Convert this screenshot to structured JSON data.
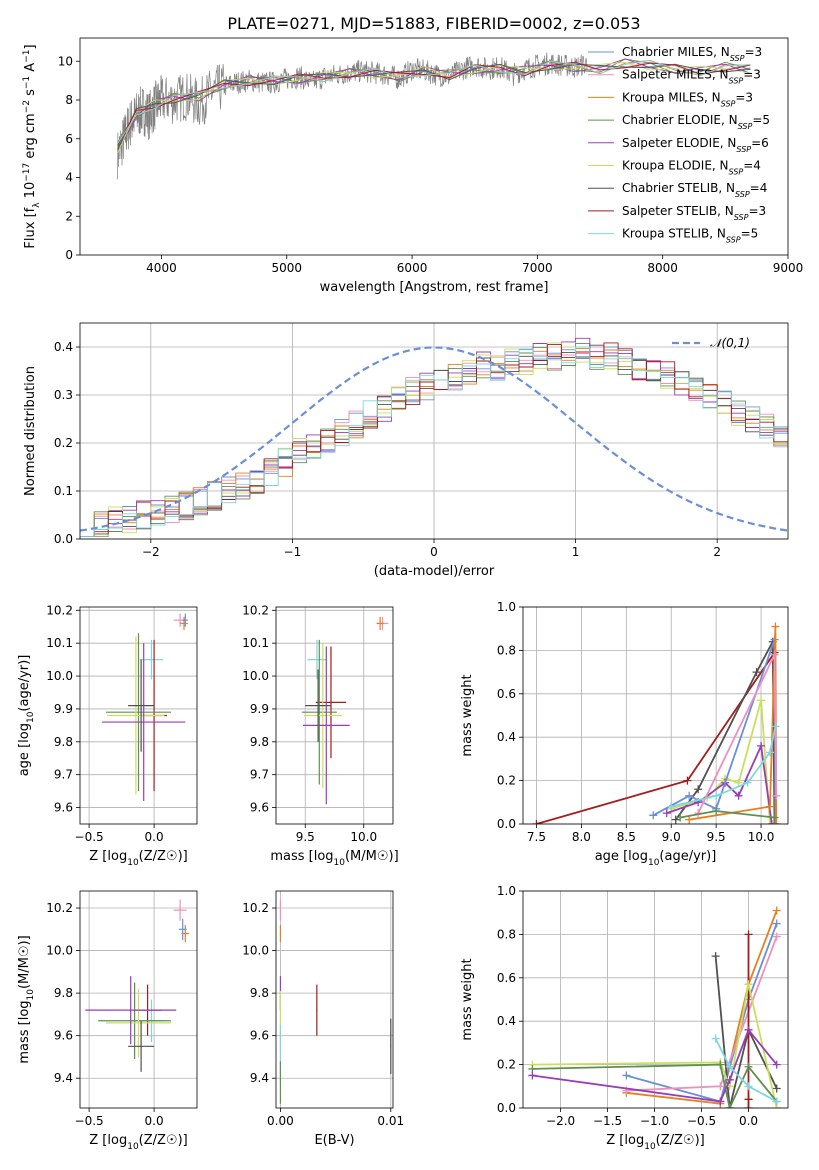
{
  "figure": {
    "title": "PLATE=0271, MJD=51883, FIBERID=0002, z=0.053"
  },
  "chart_data": [
    {
      "id": "spectrum",
      "type": "line",
      "xlabel": "wavelength [Angstrom, rest frame]",
      "ylabel": "Flux [f_λ 10^-17 erg cm^-2 s^-1 A^-1]",
      "xlim": [
        3350,
        9000
      ],
      "ylim": [
        0,
        11.2
      ],
      "xticks": [
        4000,
        5000,
        6000,
        7000,
        8000,
        9000
      ],
      "yticks": [
        0,
        2,
        4,
        6,
        8,
        10
      ],
      "grid": false,
      "legend_position": "right",
      "data_x": [
        3650,
        3700,
        3750,
        3800,
        3850,
        3900,
        3950,
        4000,
        4100,
        4200,
        4300,
        4400,
        4500,
        4600,
        4700,
        4800,
        4900,
        5000,
        5100,
        5200,
        5300,
        5400,
        5500,
        5600,
        5700,
        5800,
        5900,
        6000,
        6100,
        6200,
        6300,
        6400,
        6500,
        6600,
        6700,
        6800,
        6900,
        7000,
        7100,
        7200,
        7300,
        7400
      ],
      "data_y": [
        5.2,
        6.0,
        6.8,
        7.2,
        7.5,
        7.2,
        7.7,
        8.0,
        8.0,
        8.2,
        7.8,
        8.4,
        8.7,
        8.9,
        9.0,
        8.9,
        8.9,
        9.1,
        9.2,
        8.9,
        9.2,
        9.3,
        9.4,
        9.5,
        9.4,
        9.3,
        9.1,
        9.6,
        9.5,
        9.3,
        9.2,
        9.6,
        9.8,
        9.6,
        9.7,
        9.3,
        9.6,
        9.8,
        9.9,
        9.8,
        9.7,
        9.9
      ],
      "model_x": [
        3650,
        3800,
        3950,
        4100,
        4300,
        4500,
        4700,
        4900,
        5100,
        5300,
        5500,
        5700,
        5900,
        6100,
        6300,
        6500,
        6700,
        6900,
        7100,
        7300,
        7500,
        7700,
        7900,
        8100,
        8300,
        8500,
        8700
      ],
      "model_y": [
        5.5,
        7.3,
        7.8,
        8.1,
        8.2,
        8.8,
        9.0,
        9.0,
        9.1,
        9.2,
        9.4,
        9.4,
        9.2,
        9.5,
        9.3,
        9.6,
        9.6,
        9.5,
        9.8,
        9.7,
        9.6,
        9.9,
        9.8,
        9.6,
        9.5,
        9.7,
        9.6
      ],
      "series": [
        {
          "name": "Chabrier MILES, N",
          "sub": "SSP",
          "tail": "=3",
          "color": "#6a8fd8"
        },
        {
          "name": "Salpeter MILES, N",
          "sub": "SSP",
          "tail": "=3",
          "color": "#ee8fbf"
        },
        {
          "name": "Kroupa MILES, N",
          "sub": "SSP",
          "tail": "=3",
          "color": "#e87f1e"
        },
        {
          "name": "Chabrier ELODIE, N",
          "sub": "SSP",
          "tail": "=5",
          "color": "#5f8f52"
        },
        {
          "name": "Salpeter ELODIE, N",
          "sub": "SSP",
          "tail": "=6",
          "color": "#9a3cb8"
        },
        {
          "name": "Kroupa ELODIE, N",
          "sub": "SSP",
          "tail": "=4",
          "color": "#c8e05a"
        },
        {
          "name": "Chabrier STELIB, N",
          "sub": "SSP",
          "tail": "=4",
          "color": "#505050"
        },
        {
          "name": "Salpeter STELIB, N",
          "sub": "SSP",
          "tail": "=3",
          "color": "#a51c1c"
        },
        {
          "name": "Kroupa STELIB, N",
          "sub": "SSP",
          "tail": "=5",
          "color": "#7fd6df"
        }
      ]
    },
    {
      "id": "residuals",
      "type": "bar",
      "xlabel": "(data-model)/error",
      "ylabel": "Normed distribution",
      "xlim": [
        -2.5,
        2.5
      ],
      "ylim": [
        0,
        0.45
      ],
      "xticks": [
        -2,
        -1,
        0,
        1,
        2
      ],
      "yticks": [
        0.0,
        0.1,
        0.2,
        0.3,
        0.4
      ],
      "grid": true,
      "legend": "𝒩(0,1)",
      "legend_position": "top-right",
      "bin_width": 0.1,
      "bin_start": -2.5,
      "hist": [
        0.03,
        0.03,
        0.04,
        0.04,
        0.05,
        0.05,
        0.06,
        0.07,
        0.08,
        0.09,
        0.1,
        0.11,
        0.12,
        0.14,
        0.16,
        0.18,
        0.19,
        0.21,
        0.22,
        0.24,
        0.26,
        0.27,
        0.29,
        0.31,
        0.32,
        0.33,
        0.34,
        0.35,
        0.36,
        0.36,
        0.37,
        0.37,
        0.38,
        0.38,
        0.39,
        0.39,
        0.38,
        0.38,
        0.37,
        0.36,
        0.35,
        0.34,
        0.33,
        0.31,
        0.3,
        0.28,
        0.26,
        0.25,
        0.23,
        0.21
      ]
    },
    {
      "id": "age-vs-Z",
      "type": "scatter",
      "xlabel": "Z [log10(Z/Z☉)]",
      "ylabel": "age [log10(age/yr)]",
      "xlim": [
        -0.57,
        0.33
      ],
      "ylim": [
        9.55,
        10.21
      ],
      "xticks": [
        -0.5,
        0.0
      ],
      "xticklabels": [
        "−0.5",
        "0.0"
      ],
      "yticks": [
        9.6,
        9.7,
        9.8,
        9.9,
        10.0,
        10.1,
        10.2
      ],
      "yticklabels": [
        "9.6",
        "9.7",
        "9.8",
        "9.9",
        "10.0",
        "10.1",
        "10.2"
      ],
      "grid": true,
      "points": [
        {
          "x": 0.2,
          "y": 10.17,
          "xerr": 0.05,
          "yerr": 0.02,
          "c": 1
        },
        {
          "x": 0.23,
          "y": 10.16,
          "xerr": 0.03,
          "yerr": 0.02,
          "c": 2
        },
        {
          "x": 0.24,
          "y": 10.17,
          "xerr": 0.02,
          "yerr": 0.02,
          "c": 0
        },
        {
          "x": -0.02,
          "y": 10.05,
          "xerr": 0.09,
          "yerr": 0.06,
          "c": 8
        },
        {
          "x": 0.0,
          "y": 9.88,
          "xerr": 0.1,
          "yerr": 0.23,
          "c": 7
        },
        {
          "x": -0.12,
          "y": 9.89,
          "xerr": 0.25,
          "yerr": 0.24,
          "c": 3
        },
        {
          "x": -0.14,
          "y": 9.88,
          "xerr": 0.22,
          "yerr": 0.24,
          "c": 5
        },
        {
          "x": -0.08,
          "y": 9.86,
          "xerr": 0.32,
          "yerr": 0.24,
          "c": 4
        },
        {
          "x": -0.1,
          "y": 9.91,
          "xerr": 0.1,
          "yerr": 0.14,
          "c": 6
        }
      ]
    },
    {
      "id": "age-vs-mass",
      "type": "scatter",
      "xlabel": "mass [log10(M/M☉)]",
      "ylabel": "",
      "xlim": [
        9.25,
        10.25
      ],
      "ylim": [
        9.55,
        10.21
      ],
      "xticks": [
        9.5,
        10.0
      ],
      "xticklabels": [
        "9.5",
        "10.0"
      ],
      "yticks": [
        9.6,
        9.7,
        9.8,
        9.9,
        10.0,
        10.1,
        10.2
      ],
      "yticklabels": [
        "9.6",
        "9.7",
        "9.8",
        "9.9",
        "10.0",
        "10.1",
        "10.2"
      ],
      "grid": true,
      "points": [
        {
          "x": 10.16,
          "y": 10.16,
          "xerr": 0.05,
          "yerr": 0.02,
          "c": 1
        },
        {
          "x": 10.14,
          "y": 10.16,
          "xerr": 0.03,
          "yerr": 0.02,
          "c": 2
        },
        {
          "x": 9.6,
          "y": 10.05,
          "xerr": 0.08,
          "yerr": 0.06,
          "c": 8
        },
        {
          "x": 9.72,
          "y": 9.92,
          "xerr": 0.13,
          "yerr": 0.17,
          "c": 7
        },
        {
          "x": 9.62,
          "y": 9.89,
          "xerr": 0.15,
          "yerr": 0.22,
          "c": 3
        },
        {
          "x": 9.65,
          "y": 9.88,
          "xerr": 0.16,
          "yerr": 0.22,
          "c": 5
        },
        {
          "x": 9.68,
          "y": 9.85,
          "xerr": 0.2,
          "yerr": 0.24,
          "c": 4
        },
        {
          "x": 9.61,
          "y": 9.91,
          "xerr": 0.11,
          "yerr": 0.11,
          "c": 6
        }
      ]
    },
    {
      "id": "weight-vs-age",
      "type": "line",
      "xlabel": "age [log10(age/yr)]",
      "ylabel": "mass weight",
      "xlim": [
        7.35,
        10.3
      ],
      "ylim": [
        0,
        1.0
      ],
      "xticks": [
        7.5,
        8.0,
        8.5,
        9.0,
        9.5,
        10.0
      ],
      "xticklabels": [
        "7.5",
        "8.0",
        "8.5",
        "9.0",
        "9.5",
        "10.0"
      ],
      "yticks": [
        0.0,
        0.2,
        0.4,
        0.6,
        0.8,
        1.0
      ],
      "yticklabels": [
        "0.0",
        "0.2",
        "0.4",
        "0.6",
        "0.8",
        "1.0"
      ],
      "grid": true,
      "series": [
        {
          "c": 7,
          "x": [
            7.5,
            9.18,
            10.15,
            10.15
          ],
          "y": [
            0.0,
            0.2,
            0.79,
            0.0
          ]
        },
        {
          "c": 6,
          "x": [
            9.05,
            9.3,
            9.95,
            10.13,
            10.15
          ],
          "y": [
            0.02,
            0.16,
            0.7,
            0.84,
            0.0
          ]
        },
        {
          "c": 5,
          "x": [
            9.0,
            9.4,
            9.6,
            9.75,
            10.0,
            10.1
          ],
          "y": [
            0.07,
            0.12,
            0.21,
            0.19,
            0.57,
            0.0
          ]
        },
        {
          "c": 4,
          "x": [
            8.95,
            9.3,
            9.6,
            9.75,
            10.0,
            10.12
          ],
          "y": [
            0.05,
            0.1,
            0.19,
            0.13,
            0.36,
            0.0
          ]
        },
        {
          "c": 0,
          "x": [
            8.8,
            9.2,
            9.5,
            10.15,
            10.16
          ],
          "y": [
            0.04,
            0.13,
            0.07,
            0.85,
            0.0
          ]
        },
        {
          "c": 2,
          "x": [
            9.2,
            10.1,
            10.16,
            10.17
          ],
          "y": [
            0.02,
            0.08,
            0.91,
            0.0
          ]
        },
        {
          "c": 1,
          "x": [
            9.3,
            10.15,
            10.17
          ],
          "y": [
            0.05,
            0.78,
            0.13
          ]
        },
        {
          "c": 8,
          "x": [
            9.0,
            9.5,
            9.85,
            10.1,
            10.16
          ],
          "y": [
            0.08,
            0.13,
            0.19,
            0.33,
            0.45
          ]
        },
        {
          "c": 3,
          "x": [
            9.1,
            9.5,
            10.15
          ],
          "y": [
            0.03,
            0.06,
            0.03
          ]
        }
      ]
    },
    {
      "id": "mass-vs-Z",
      "type": "scatter",
      "xlabel": "Z [log10(Z/Z☉)]",
      "ylabel": "mass [log10(M/M☉)]",
      "xlim": [
        -0.57,
        0.33
      ],
      "ylim": [
        9.26,
        10.28
      ],
      "xticks": [
        -0.5,
        0.0
      ],
      "xticklabels": [
        "−0.5",
        "0.0"
      ],
      "yticks": [
        9.4,
        9.6,
        9.8,
        10.0,
        10.2
      ],
      "yticklabels": [
        "9.4",
        "9.6",
        "9.8",
        "10.0",
        "10.2"
      ],
      "grid": true,
      "points": [
        {
          "x": 0.2,
          "y": 10.19,
          "xerr": 0.05,
          "yerr": 0.05,
          "c": 1
        },
        {
          "x": 0.24,
          "y": 10.08,
          "xerr": 0.03,
          "yerr": 0.04,
          "c": 2
        },
        {
          "x": 0.22,
          "y": 10.1,
          "xerr": 0.03,
          "yerr": 0.05,
          "c": 0
        },
        {
          "x": -0.02,
          "y": 9.67,
          "xerr": 0.1,
          "yerr": 0.1,
          "c": 8
        },
        {
          "x": -0.05,
          "y": 9.72,
          "xerr": 0.11,
          "yerr": 0.12,
          "c": 7
        },
        {
          "x": -0.15,
          "y": 9.67,
          "xerr": 0.28,
          "yerr": 0.18,
          "c": 3
        },
        {
          "x": -0.12,
          "y": 9.66,
          "xerr": 0.25,
          "yerr": 0.16,
          "c": 5
        },
        {
          "x": -0.18,
          "y": 9.72,
          "xerr": 0.35,
          "yerr": 0.16,
          "c": 4
        },
        {
          "x": -0.1,
          "y": 9.55,
          "xerr": 0.1,
          "yerr": 0.12,
          "c": 6
        }
      ]
    },
    {
      "id": "mass-vs-ebv",
      "type": "scatter",
      "xlabel": "E(B-V)",
      "ylabel": "",
      "xlim": [
        -0.0004,
        0.0102
      ],
      "ylim": [
        9.26,
        10.28
      ],
      "xticks": [
        0.0,
        0.01
      ],
      "xticklabels": [
        "0.00",
        "0.01"
      ],
      "yticks": [
        9.4,
        9.6,
        9.8,
        10.0,
        10.2
      ],
      "yticklabels": [
        "9.4",
        "9.6",
        "9.8",
        "10.0",
        "10.2"
      ],
      "grid": true,
      "points": [
        {
          "x": 0.0,
          "y": 10.19,
          "xerr": 5e-05,
          "yerr": 0.05,
          "c": 1
        },
        {
          "x": 0.0,
          "y": 10.08,
          "xerr": 5e-05,
          "yerr": 0.04,
          "c": 2
        },
        {
          "x": 0.0,
          "y": 9.8,
          "xerr": 5e-05,
          "yerr": 0.08,
          "c": 4
        },
        {
          "x": 0.0,
          "y": 9.67,
          "xerr": 5e-05,
          "yerr": 0.14,
          "c": 5
        },
        {
          "x": 0.0,
          "y": 9.52,
          "xerr": 5e-05,
          "yerr": 0.13,
          "c": 8
        },
        {
          "x": 0.0,
          "y": 9.38,
          "xerr": 5e-05,
          "yerr": 0.1,
          "c": 3
        },
        {
          "x": 0.0033,
          "y": 9.72,
          "xerr": 5e-05,
          "yerr": 0.12,
          "c": 7
        },
        {
          "x": 0.01,
          "y": 9.55,
          "xerr": 5e-05,
          "yerr": 0.13,
          "c": 6
        }
      ]
    },
    {
      "id": "weight-vs-Z",
      "type": "line",
      "xlabel": "Z [log10(Z/Z☉)]",
      "ylabel": "mass weight",
      "xlim": [
        -2.4,
        0.42
      ],
      "ylim": [
        0,
        1.0
      ],
      "xticks": [
        -2.0,
        -1.5,
        -1.0,
        -0.5,
        0.0
      ],
      "xticklabels": [
        "−2.0",
        "−1.5",
        "−1.0",
        "−0.5",
        "0.0"
      ],
      "yticks": [
        0.0,
        0.2,
        0.4,
        0.6,
        0.8,
        1.0
      ],
      "yticklabels": [
        "0.0",
        "0.2",
        "0.4",
        "0.6",
        "0.8",
        "1.0"
      ],
      "grid": true,
      "series": [
        {
          "c": 2,
          "x": [
            -1.3,
            -0.3,
            0.0,
            0.3
          ],
          "y": [
            0.07,
            0.02,
            0.57,
            0.91
          ]
        },
        {
          "c": 0,
          "x": [
            -1.3,
            -0.3,
            0.0,
            0.3
          ],
          "y": [
            0.15,
            0.03,
            0.5,
            0.85
          ]
        },
        {
          "c": 1,
          "x": [
            -1.3,
            -0.3,
            0.3
          ],
          "y": [
            0.08,
            0.1,
            0.79
          ]
        },
        {
          "c": 6,
          "x": [
            -0.35,
            -0.2,
            0.0,
            0.3
          ],
          "y": [
            0.7,
            0.0,
            0.36,
            0.09
          ]
        },
        {
          "c": 7,
          "x": [
            0.0,
            0.0,
            0.0
          ],
          "y": [
            0.8,
            0.04,
            0.0
          ]
        },
        {
          "c": 5,
          "x": [
            -2.3,
            -0.3,
            -0.2,
            0.0,
            0.3
          ],
          "y": [
            0.2,
            0.21,
            0.1,
            0.57,
            0.0
          ]
        },
        {
          "c": 3,
          "x": [
            -2.3,
            -0.3,
            -0.2,
            0.0,
            0.3
          ],
          "y": [
            0.18,
            0.2,
            0.0,
            0.19,
            0.03
          ]
        },
        {
          "c": 4,
          "x": [
            -2.3,
            -0.3,
            -0.2,
            0.0,
            0.3
          ],
          "y": [
            0.15,
            0.03,
            0.13,
            0.36,
            0.2
          ]
        },
        {
          "c": 8,
          "x": [
            -0.35,
            -0.2,
            0.0,
            0.3
          ],
          "y": [
            0.32,
            0.19,
            0.1,
            0.03
          ]
        }
      ]
    }
  ]
}
